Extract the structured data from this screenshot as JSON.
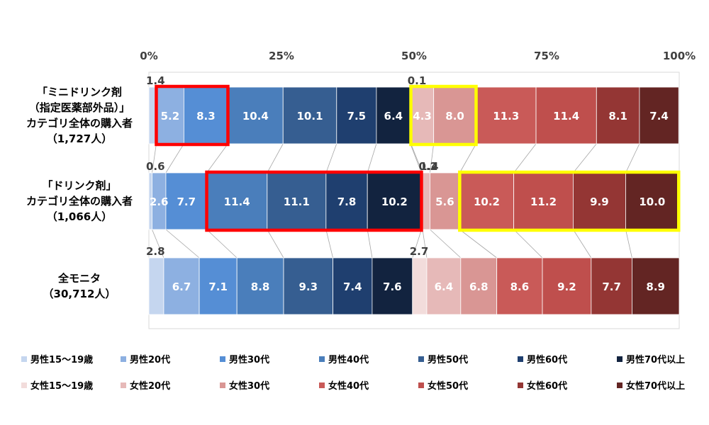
{
  "chart_data": {
    "type": "bar",
    "orientation": "horizontal",
    "stacked": "percent",
    "title": "",
    "xlim": [
      0,
      100
    ],
    "x_ticks": [
      "0%",
      "25%",
      "50%",
      "75%",
      "100%"
    ],
    "x_tick_values": [
      0,
      25,
      50,
      75,
      100
    ],
    "categories": [
      [
        "「ミニドリンク剤",
        "（指定医薬部外品）」",
        "カテゴリ全体の購入者",
        "（1,727人）"
      ],
      [
        "「ドリンク剤」",
        "カテゴリ全体の購入者",
        "（1,066人）"
      ],
      [
        "全モニタ",
        "（30,712人）"
      ]
    ],
    "series": [
      {
        "name": "男性15～19歳",
        "color": "#c5d6ef",
        "values": [
          1.4,
          0.6,
          2.8
        ],
        "labels": [
          "1.4",
          "0.6",
          "2.8"
        ],
        "outside": [
          true,
          true,
          true
        ]
      },
      {
        "name": "男性20代",
        "color": "#8db0e1",
        "values": [
          5.2,
          2.6,
          6.7
        ],
        "labels": [
          "5.2",
          "2.6",
          "6.7"
        ],
        "outside": [
          false,
          false,
          false
        ]
      },
      {
        "name": "男性30代",
        "color": "#558ed5",
        "values": [
          8.3,
          7.7,
          7.1
        ],
        "labels": [
          "8.3",
          "7.7",
          "7.1"
        ],
        "outside": [
          false,
          false,
          false
        ]
      },
      {
        "name": "男性40代",
        "color": "#4a7ebb",
        "values": [
          10.4,
          11.4,
          8.8
        ],
        "labels": [
          "10.4",
          "11.4",
          "8.8"
        ],
        "outside": [
          false,
          false,
          false
        ]
      },
      {
        "name": "男性50代",
        "color": "#365e91",
        "values": [
          10.1,
          11.1,
          9.3
        ],
        "labels": [
          "10.1",
          "11.1",
          "9.3"
        ],
        "outside": [
          false,
          false,
          false
        ]
      },
      {
        "name": "男性60代",
        "color": "#1f3f6f",
        "values": [
          7.5,
          7.8,
          7.4
        ],
        "labels": [
          "7.5",
          "7.8",
          "7.4"
        ],
        "outside": [
          false,
          false,
          false
        ]
      },
      {
        "name": "男性70代以上",
        "color": "#12233f",
        "values": [
          6.4,
          10.2,
          7.6
        ],
        "labels": [
          "6.4",
          "10.2",
          "7.6"
        ],
        "outside": [
          false,
          false,
          false
        ]
      },
      {
        "name": "女性15～19歳",
        "color": "#f2dcdb",
        "values": [
          0.1,
          0.2,
          2.7
        ],
        "labels": [
          "0.1",
          "0.2",
          "2.7"
        ],
        "outside": [
          true,
          true,
          true
        ]
      },
      {
        "name": "女性20代",
        "color": "#e6b9b8",
        "values": [
          4.3,
          1.4,
          6.4
        ],
        "labels": [
          "4.3",
          "1.4",
          "6.4"
        ],
        "outside": [
          false,
          true,
          false
        ]
      },
      {
        "name": "女性30代",
        "color": "#d99694",
        "values": [
          8.0,
          5.6,
          6.8
        ],
        "labels": [
          "8.0",
          "5.6",
          "6.8"
        ],
        "outside": [
          false,
          false,
          false
        ]
      },
      {
        "name": "女性40代",
        "color": "#c95a58",
        "values": [
          11.3,
          10.2,
          8.6
        ],
        "labels": [
          "11.3",
          "10.2",
          "8.6"
        ],
        "outside": [
          false,
          false,
          false
        ]
      },
      {
        "name": "女性50代",
        "color": "#bf4f4d",
        "values": [
          11.4,
          11.2,
          9.2
        ],
        "labels": [
          "11.4",
          "11.2",
          "9.2"
        ],
        "outside": [
          false,
          false,
          false
        ]
      },
      {
        "name": "女性60代",
        "color": "#943634",
        "values": [
          8.1,
          9.9,
          7.7
        ],
        "labels": [
          "8.1",
          "9.9",
          "7.7"
        ],
        "outside": [
          false,
          false,
          false
        ]
      },
      {
        "name": "女性70代以上",
        "color": "#632523",
        "values": [
          7.4,
          10.0,
          8.9
        ],
        "labels": [
          "7.4",
          "10.0",
          "8.9"
        ],
        "outside": [
          false,
          false,
          false
        ]
      }
    ],
    "highlights": [
      {
        "row": 0,
        "from_series": 1,
        "to_series": 2,
        "color": "#ff0000"
      },
      {
        "row": 0,
        "from_series": 8,
        "to_series": 9,
        "color": "#ffff00"
      },
      {
        "row": 1,
        "from_series": 3,
        "to_series": 6,
        "color": "#ff0000"
      },
      {
        "row": 1,
        "from_series": 10,
        "to_series": 13,
        "color": "#ffff00"
      }
    ],
    "legend_position": "bottom",
    "grid": false,
    "series_connector_lines": true
  }
}
